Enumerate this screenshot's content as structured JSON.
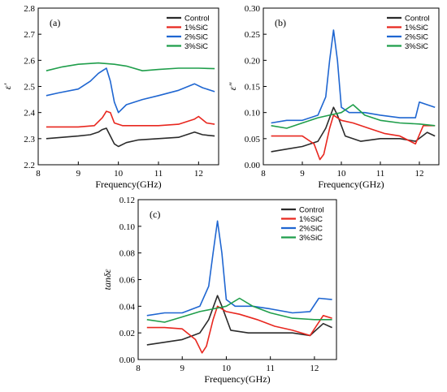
{
  "chart_data": [
    {
      "type": "line",
      "panel_label": "(a)",
      "xlabel": "Frequency(GHz)",
      "ylabel": "ε′",
      "xlim": [
        8,
        12.5
      ],
      "ylim": [
        2.2,
        2.8
      ],
      "xticks": [
        8,
        9,
        10,
        11,
        12
      ],
      "yticks": [
        2.2,
        2.3,
        2.4,
        2.5,
        2.6,
        2.7,
        2.8
      ],
      "ytick_decimals": 1,
      "legend_position": "top-right",
      "series": [
        {
          "name": "Control",
          "color": "#2b2b2b",
          "x": [
            8.2,
            8.6,
            9.0,
            9.3,
            9.5,
            9.6,
            9.7,
            9.8,
            9.9,
            10.0,
            10.2,
            10.5,
            11.0,
            11.5,
            11.9,
            12.1,
            12.4
          ],
          "y": [
            2.3,
            2.305,
            2.31,
            2.315,
            2.325,
            2.335,
            2.34,
            2.31,
            2.28,
            2.27,
            2.285,
            2.295,
            2.3,
            2.305,
            2.325,
            2.315,
            2.31
          ]
        },
        {
          "name": "1%SiC",
          "color": "#e8271f",
          "x": [
            8.2,
            8.6,
            9.0,
            9.4,
            9.6,
            9.7,
            9.8,
            9.9,
            10.1,
            10.5,
            11.0,
            11.5,
            11.9,
            12.0,
            12.2,
            12.4
          ],
          "y": [
            2.345,
            2.345,
            2.345,
            2.35,
            2.38,
            2.405,
            2.4,
            2.36,
            2.35,
            2.35,
            2.35,
            2.355,
            2.375,
            2.385,
            2.36,
            2.355
          ]
        },
        {
          "name": "2%SiC",
          "color": "#1f66d1",
          "x": [
            8.2,
            8.5,
            9.0,
            9.3,
            9.5,
            9.7,
            9.8,
            9.9,
            10.0,
            10.2,
            10.6,
            11.0,
            11.5,
            11.9,
            12.1,
            12.4
          ],
          "y": [
            2.465,
            2.475,
            2.49,
            2.52,
            2.55,
            2.57,
            2.52,
            2.44,
            2.4,
            2.43,
            2.45,
            2.465,
            2.485,
            2.51,
            2.495,
            2.48
          ]
        },
        {
          "name": "3%SiC",
          "color": "#1f9e4b",
          "x": [
            8.2,
            8.6,
            9.0,
            9.5,
            9.9,
            10.2,
            10.6,
            11.0,
            11.5,
            12.0,
            12.4
          ],
          "y": [
            2.56,
            2.575,
            2.585,
            2.59,
            2.585,
            2.578,
            2.56,
            2.565,
            2.57,
            2.57,
            2.568
          ]
        }
      ]
    },
    {
      "type": "line",
      "panel_label": "(b)",
      "xlabel": "Frequency(GHz)",
      "ylabel": "ε″",
      "xlim": [
        8,
        12.5
      ],
      "ylim": [
        0,
        0.3
      ],
      "xticks": [
        8,
        9,
        10,
        11,
        12
      ],
      "yticks": [
        0,
        0.05,
        0.1,
        0.15,
        0.2,
        0.25,
        0.3
      ],
      "ytick_decimals": 2,
      "legend_position": "top-right",
      "series": [
        {
          "name": "Control",
          "color": "#2b2b2b",
          "x": [
            8.2,
            8.6,
            9.0,
            9.4,
            9.6,
            9.8,
            9.9,
            10.1,
            10.5,
            11.0,
            11.5,
            11.9,
            12.2,
            12.4
          ],
          "y": [
            0.025,
            0.03,
            0.035,
            0.045,
            0.07,
            0.11,
            0.095,
            0.055,
            0.045,
            0.05,
            0.05,
            0.045,
            0.062,
            0.055
          ]
        },
        {
          "name": "1%SiC",
          "color": "#e8271f",
          "x": [
            8.2,
            8.6,
            9.0,
            9.3,
            9.45,
            9.55,
            9.7,
            9.8,
            10.0,
            10.3,
            10.7,
            11.1,
            11.5,
            11.9,
            12.1,
            12.4
          ],
          "y": [
            0.055,
            0.055,
            0.055,
            0.04,
            0.01,
            0.02,
            0.07,
            0.095,
            0.085,
            0.08,
            0.07,
            0.06,
            0.055,
            0.04,
            0.075,
            0.075
          ]
        },
        {
          "name": "2%SiC",
          "color": "#1f66d1",
          "x": [
            8.2,
            8.6,
            9.0,
            9.4,
            9.6,
            9.7,
            9.8,
            9.9,
            10.0,
            10.2,
            10.6,
            11.0,
            11.5,
            11.9,
            12.0,
            12.4
          ],
          "y": [
            0.08,
            0.085,
            0.085,
            0.095,
            0.13,
            0.2,
            0.258,
            0.2,
            0.11,
            0.1,
            0.1,
            0.095,
            0.09,
            0.09,
            0.12,
            0.11
          ]
        },
        {
          "name": "3%SiC",
          "color": "#1f9e4b",
          "x": [
            8.2,
            8.6,
            9.0,
            9.4,
            9.7,
            10.0,
            10.3,
            10.6,
            11.0,
            11.5,
            12.0,
            12.4
          ],
          "y": [
            0.075,
            0.07,
            0.08,
            0.09,
            0.095,
            0.1,
            0.115,
            0.095,
            0.085,
            0.08,
            0.078,
            0.075
          ]
        }
      ]
    },
    {
      "type": "line",
      "panel_label": "(c)",
      "xlabel": "Frequency(GHz)",
      "ylabel": "tanδε",
      "xlim": [
        8,
        12.5
      ],
      "ylim": [
        0,
        0.12
      ],
      "xticks": [
        8,
        9,
        10,
        11,
        12
      ],
      "yticks": [
        0,
        0.02,
        0.04,
        0.06,
        0.08,
        0.1,
        0.12
      ],
      "ytick_decimals": 2,
      "legend_position": "top-right",
      "series": [
        {
          "name": "Control",
          "color": "#2b2b2b",
          "x": [
            8.2,
            8.6,
            9.0,
            9.4,
            9.6,
            9.8,
            9.9,
            10.1,
            10.5,
            11.0,
            11.5,
            11.9,
            12.2,
            12.4
          ],
          "y": [
            0.011,
            0.013,
            0.015,
            0.02,
            0.03,
            0.048,
            0.04,
            0.022,
            0.02,
            0.02,
            0.02,
            0.018,
            0.027,
            0.024
          ]
        },
        {
          "name": "1%SiC",
          "color": "#e8271f",
          "x": [
            8.2,
            8.6,
            9.0,
            9.3,
            9.45,
            9.55,
            9.7,
            9.8,
            10.0,
            10.3,
            10.7,
            11.1,
            11.5,
            11.9,
            12.2,
            12.4
          ],
          "y": [
            0.024,
            0.024,
            0.023,
            0.015,
            0.005,
            0.01,
            0.03,
            0.04,
            0.036,
            0.034,
            0.03,
            0.025,
            0.022,
            0.018,
            0.033,
            0.031
          ]
        },
        {
          "name": "2%SiC",
          "color": "#1f66d1",
          "x": [
            8.2,
            8.6,
            9.0,
            9.4,
            9.6,
            9.7,
            9.8,
            9.9,
            10.0,
            10.2,
            10.6,
            11.0,
            11.5,
            11.9,
            12.1,
            12.4
          ],
          "y": [
            0.033,
            0.035,
            0.035,
            0.04,
            0.055,
            0.08,
            0.104,
            0.08,
            0.045,
            0.04,
            0.04,
            0.038,
            0.035,
            0.036,
            0.046,
            0.045
          ]
        },
        {
          "name": "3%SiC",
          "color": "#1f9e4b",
          "x": [
            8.2,
            8.6,
            9.0,
            9.4,
            9.7,
            10.0,
            10.3,
            10.6,
            11.0,
            11.5,
            12.0,
            12.4
          ],
          "y": [
            0.03,
            0.028,
            0.032,
            0.036,
            0.038,
            0.04,
            0.046,
            0.04,
            0.035,
            0.031,
            0.03,
            0.03
          ]
        }
      ]
    }
  ]
}
